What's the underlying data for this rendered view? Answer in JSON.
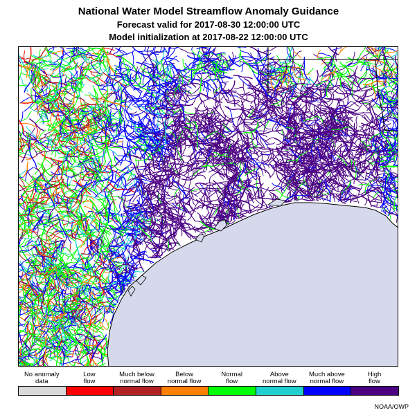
{
  "title": {
    "line1": "National Water Model Streamflow Anomaly Guidance",
    "line2": "Forecast valid for 2017-08-30 12:00:00 UTC",
    "line3": "Model initialization at 2017-08-22 12:00:00 UTC"
  },
  "legend": [
    {
      "line1": "No anomaly",
      "line2": "data",
      "color": "#d9d9d9"
    },
    {
      "line1": "Low",
      "line2": "flow",
      "color": "#ff0000"
    },
    {
      "line1": "Much below",
      "line2": "normal flow",
      "color": "#b22222"
    },
    {
      "line1": "Below",
      "line2": "normal flow",
      "color": "#ff7f00"
    },
    {
      "line1": "Normal",
      "line2": "flow",
      "color": "#00ff00"
    },
    {
      "line1": "Above",
      "line2": "normal flow",
      "color": "#20d0d0"
    },
    {
      "line1": "Much above",
      "line2": "normal flow",
      "color": "#0000ff"
    },
    {
      "line1": "High",
      "line2": "flow",
      "color": "#4b0082"
    }
  ],
  "credit": "NOAA/OWP",
  "map": {
    "water_color": "#d6d8ec",
    "border_color": "#000000"
  }
}
